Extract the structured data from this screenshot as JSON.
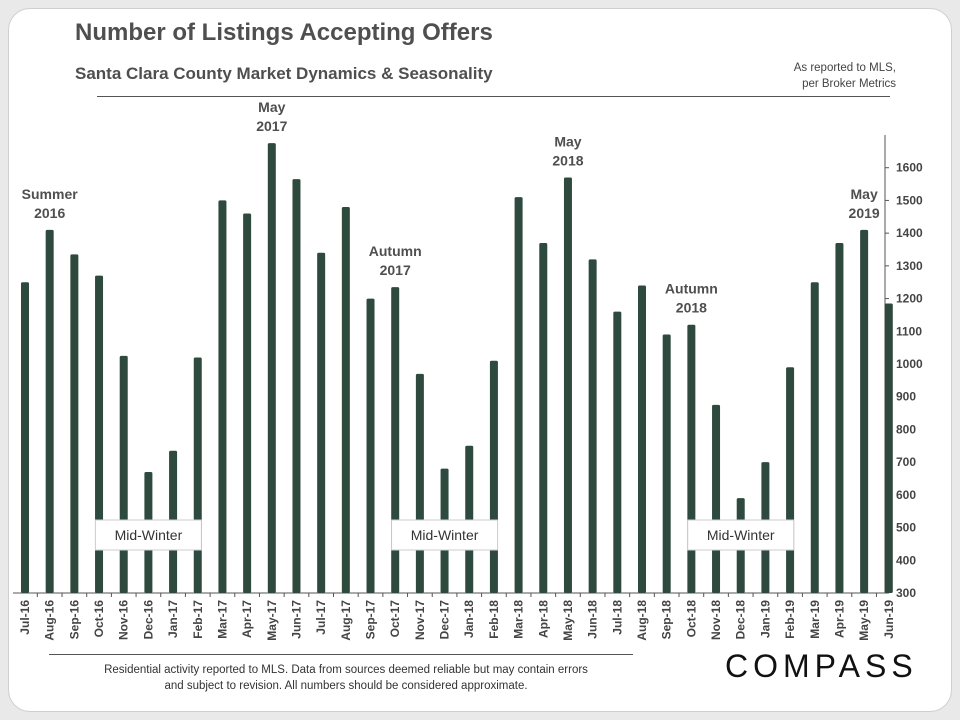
{
  "header": {
    "title": "Number of Listings Accepting Offers",
    "subtitle": "Santa Clara County  Market  Dynamics  &  Seasonality",
    "source_note": "As reported to MLS,\nper Broker Metrics"
  },
  "footer": {
    "disclaimer": "Residential activity reported to MLS. Data from sources deemed reliable but may contain errors\nand subject to revision. All numbers should be considered approximate.",
    "brand": "COMPASS"
  },
  "colors": {
    "bar": "#2e4a3f",
    "text": "#4f4f4f",
    "axis": "#555555"
  },
  "chart_data": {
    "type": "bar",
    "title": "Number of Listings Accepting Offers",
    "xlabel": "",
    "ylabel": "",
    "ylim": [
      300,
      1700
    ],
    "yticks": [
      300,
      400,
      500,
      600,
      700,
      800,
      900,
      1000,
      1100,
      1200,
      1300,
      1400,
      1500,
      1600
    ],
    "y_axis_side": "right",
    "categories": [
      "Jul-16",
      "Aug-16",
      "Sep-16",
      "Oct-16",
      "Nov-16",
      "Dec-16",
      "Jan-17",
      "Feb-17",
      "Mar-17",
      "Apr-17",
      "May-17",
      "Jun-17",
      "Jul-17",
      "Aug-17",
      "Sep-17",
      "Oct-17",
      "Nov-17",
      "Dec-17",
      "Jan-18",
      "Feb-18",
      "Mar-18",
      "Apr-18",
      "May-18",
      "Jun-18",
      "Jul-18",
      "Aug-18",
      "Sep-18",
      "Oct-18",
      "Nov-18",
      "Dec-18",
      "Jan-19",
      "Feb-19",
      "Mar-19",
      "Apr-19",
      "May-19",
      "Jun-19"
    ],
    "values": [
      1250,
      1410,
      1335,
      1270,
      1025,
      670,
      735,
      1020,
      1500,
      1460,
      1675,
      1565,
      1340,
      1480,
      1200,
      1235,
      970,
      680,
      750,
      1010,
      1510,
      1370,
      1570,
      1320,
      1160,
      1240,
      1090,
      1120,
      875,
      590,
      700,
      990,
      1250,
      1370,
      1410,
      1185
    ],
    "annotations": [
      {
        "text": "Summer\n2016",
        "category": "Aug-16",
        "type": "peak"
      },
      {
        "text": "May\n2017",
        "category": "May-17",
        "type": "peak"
      },
      {
        "text": "Autumn\n2017",
        "category": "Oct-17",
        "type": "peak"
      },
      {
        "text": "May\n2018",
        "category": "May-18",
        "type": "peak"
      },
      {
        "text": "Autumn\n2018",
        "category": "Oct-18",
        "type": "peak"
      },
      {
        "text": "May\n2019",
        "category": "May-19",
        "type": "peak"
      },
      {
        "text": "Mid-Winter",
        "category": "Dec-16",
        "type": "box"
      },
      {
        "text": "Mid-Winter",
        "category": "Dec-17",
        "type": "box"
      },
      {
        "text": "Mid-Winter",
        "category": "Dec-18",
        "type": "box"
      }
    ]
  }
}
